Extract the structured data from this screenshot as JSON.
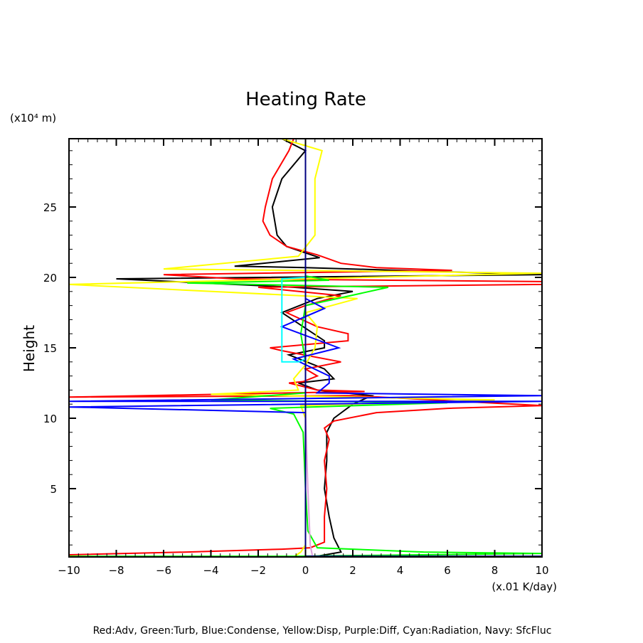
{
  "chart_data": {
    "type": "line",
    "title": "Heating Rate",
    "ylabel": "Height",
    "yunit": "(x10⁴ m)",
    "xunit": "(x.01 K/day)",
    "xlim": [
      -10,
      10
    ],
    "ylim": [
      0.15,
      29.85
    ],
    "xticks": [
      -10,
      -8,
      -6,
      -4,
      -2,
      0,
      2,
      4,
      6,
      8,
      10
    ],
    "yticks": [
      5,
      10,
      15,
      20,
      25
    ],
    "legend_text": "Red:Adv, Green:Turb, Blue:Condense, Yellow:Disp, Purple:Diff, Cyan:Radiation, Navy: SfcFluc",
    "series": [
      {
        "key": "total",
        "color": "#000000",
        "points": [
          [
            0.5,
            0.2
          ],
          [
            1.5,
            0.5
          ],
          [
            1.2,
            1.5
          ],
          [
            1,
            3
          ],
          [
            0.8,
            5
          ],
          [
            0.9,
            7
          ],
          [
            0.9,
            9
          ],
          [
            1.2,
            10
          ],
          [
            2,
            11
          ],
          [
            2.8,
            11.6
          ],
          [
            0.5,
            12
          ],
          [
            -0.3,
            12.5
          ],
          [
            1.2,
            12.8
          ],
          [
            0.8,
            13.5
          ],
          [
            -0.7,
            14.5
          ],
          [
            0.8,
            15
          ],
          [
            0.8,
            15.5
          ],
          [
            -1,
            17.5
          ],
          [
            0.5,
            18.5
          ],
          [
            2,
            19
          ],
          [
            -0.5,
            19.3
          ],
          [
            -8,
            19.9
          ],
          [
            10,
            20.2
          ],
          [
            0,
            20.7
          ],
          [
            -3,
            20.8
          ],
          [
            0.6,
            21.4
          ],
          [
            -0.8,
            22.2
          ],
          [
            -1.2,
            23
          ],
          [
            -1.4,
            25
          ],
          [
            -1,
            27
          ],
          [
            0,
            29
          ],
          [
            -1,
            29.85
          ]
        ]
      },
      {
        "key": "adv",
        "color": "#ff0000",
        "points": [
          [
            -10,
            0.3
          ],
          [
            -5,
            0.5
          ],
          [
            -1,
            0.7
          ],
          [
            0.2,
            0.8
          ],
          [
            0.8,
            1.2
          ],
          [
            0.8,
            3
          ],
          [
            0.9,
            5
          ],
          [
            0.8,
            7
          ],
          [
            1.0,
            8.5
          ],
          [
            0.8,
            9.3
          ],
          [
            1.2,
            9.8
          ],
          [
            3,
            10.4
          ],
          [
            6,
            10.7
          ],
          [
            10,
            10.9
          ],
          [
            2,
            11.6
          ],
          [
            -10,
            11.5
          ],
          [
            2.5,
            11.9
          ],
          [
            0.5,
            12.0
          ],
          [
            -0.2,
            12.3
          ],
          [
            -0.7,
            12.5
          ],
          [
            -0.1,
            12.6
          ],
          [
            0.5,
            13
          ],
          [
            0,
            13.5
          ],
          [
            1.5,
            14
          ],
          [
            -1,
            14.8
          ],
          [
            -1.5,
            15
          ],
          [
            1.8,
            15.5
          ],
          [
            1.8,
            16
          ],
          [
            0.5,
            16.5
          ],
          [
            -0.8,
            17.5
          ],
          [
            0,
            18
          ],
          [
            1.5,
            18.7
          ],
          [
            -2,
            19.3
          ],
          [
            10,
            19.5
          ],
          [
            10,
            19.7
          ],
          [
            -3,
            19.9
          ],
          [
            -6,
            20.2
          ],
          [
            6.2,
            20.5
          ],
          [
            3,
            20.7
          ],
          [
            1.5,
            21
          ],
          [
            0.5,
            21.6
          ],
          [
            -0.8,
            22.2
          ],
          [
            -1.5,
            23
          ],
          [
            -1.8,
            24
          ],
          [
            -1.7,
            25
          ],
          [
            -1.4,
            27
          ],
          [
            -0.7,
            29
          ],
          [
            -0.5,
            29.85
          ]
        ]
      },
      {
        "key": "disp",
        "color": "#ffff00",
        "points": [
          [
            -0.5,
            0.15
          ],
          [
            -0.2,
            0.5
          ],
          [
            0,
            1
          ],
          [
            0,
            10
          ],
          [
            -0.2,
            10.9
          ],
          [
            8,
            11.3
          ],
          [
            -4,
            11.7
          ],
          [
            -0.3,
            12
          ],
          [
            -0.5,
            12.8
          ],
          [
            0,
            13.8
          ],
          [
            0.4,
            15
          ],
          [
            0.5,
            16.5
          ],
          [
            0,
            17.5
          ],
          [
            2.2,
            18.5
          ],
          [
            -10,
            19.5
          ],
          [
            10,
            20.3
          ],
          [
            -6,
            20.6
          ],
          [
            -0.3,
            21.5
          ],
          [
            0.4,
            23
          ],
          [
            0.4,
            27
          ],
          [
            0.7,
            29
          ],
          [
            -1,
            29.85
          ]
        ]
      },
      {
        "key": "turb",
        "color": "#00ff00",
        "points": [
          [
            -10,
            0.2
          ],
          [
            -0.5,
            0.2
          ],
          [
            10,
            0.4
          ],
          [
            5,
            0.5
          ],
          [
            0.5,
            0.8
          ],
          [
            0.1,
            2
          ],
          [
            0,
            5
          ],
          [
            -0.1,
            9
          ],
          [
            -0.5,
            10.3
          ],
          [
            -1.5,
            10.7
          ],
          [
            6,
            11.1
          ],
          [
            -4,
            11.3
          ],
          [
            0,
            11.8
          ],
          [
            0,
            14
          ],
          [
            -0.2,
            16
          ],
          [
            0,
            18
          ],
          [
            3.5,
            19.3
          ],
          [
            -5,
            19.6
          ],
          [
            1,
            19.8
          ],
          [
            0,
            20.1
          ]
        ]
      },
      {
        "key": "condense",
        "color": "#0000ff",
        "points": [
          [
            0,
            0.15
          ],
          [
            0,
            10.4
          ],
          [
            -10,
            10.8
          ],
          [
            10,
            11.2
          ],
          [
            -10,
            11.2
          ],
          [
            10,
            11.6
          ],
          [
            0.5,
            11.8
          ],
          [
            1,
            12.5
          ],
          [
            1,
            13
          ],
          [
            -0.5,
            14.2
          ],
          [
            1.4,
            15
          ],
          [
            -1,
            16.5
          ],
          [
            0.8,
            17.8
          ],
          [
            0,
            18.5
          ],
          [
            0,
            20
          ]
        ]
      },
      {
        "key": "radiation",
        "color": "#00ffff",
        "points": [
          [
            0,
            20
          ],
          [
            -1,
            19.9
          ],
          [
            -1,
            14
          ],
          [
            -0.3,
            14
          ],
          [
            0,
            14.2
          ]
        ]
      },
      {
        "key": "diff",
        "color": "#dda0dd",
        "points": [
          [
            0.3,
            0.15
          ],
          [
            0.2,
            1
          ],
          [
            0.1,
            5
          ],
          [
            0,
            10.5
          ]
        ]
      },
      {
        "key": "sfcfluc",
        "color": "#000080",
        "points": [
          [
            10,
            0.2
          ],
          [
            0,
            0.2
          ],
          [
            0,
            29.85
          ]
        ]
      }
    ]
  }
}
